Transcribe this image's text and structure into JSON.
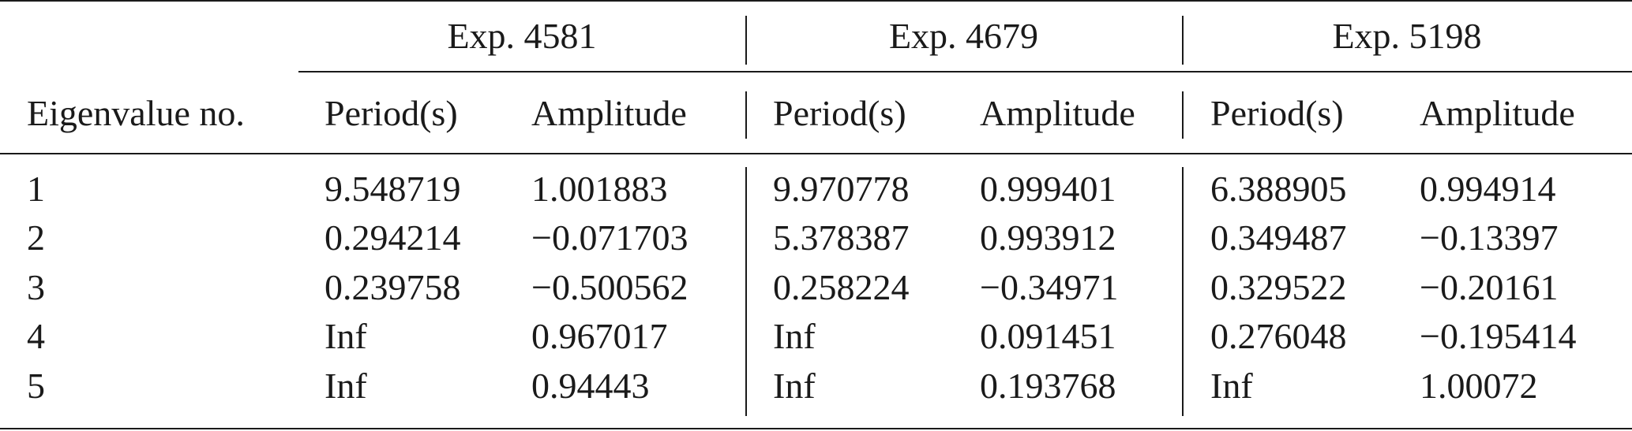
{
  "groups": [
    {
      "label": "Exp. 4581"
    },
    {
      "label": "Exp. 4679"
    },
    {
      "label": "Exp. 5198"
    }
  ],
  "row_header": "Eigenvalue no.",
  "sub_headers": [
    "Period(s)",
    "Amplitude",
    "Period(s)",
    "Amplitude",
    "Period(s)",
    "Amplitude"
  ],
  "rows": [
    {
      "no": "1",
      "cells": [
        "9.548719",
        "1.001883",
        "9.970778",
        "0.999401",
        "6.388905",
        "0.994914"
      ]
    },
    {
      "no": "2",
      "cells": [
        "0.294214",
        "−0.071703",
        "5.378387",
        "0.993912",
        "0.349487",
        "−0.13397"
      ]
    },
    {
      "no": "3",
      "cells": [
        "0.239758",
        "−0.500562",
        "0.258224",
        "−0.34971",
        "0.329522",
        "−0.20161"
      ]
    },
    {
      "no": "4",
      "cells": [
        "Inf",
        "0.967017",
        "Inf",
        "0.091451",
        "0.276048",
        "−0.195414"
      ]
    },
    {
      "no": "5",
      "cells": [
        "Inf",
        "0.94443",
        "Inf",
        "0.193768",
        "Inf",
        "1.00072"
      ]
    }
  ]
}
